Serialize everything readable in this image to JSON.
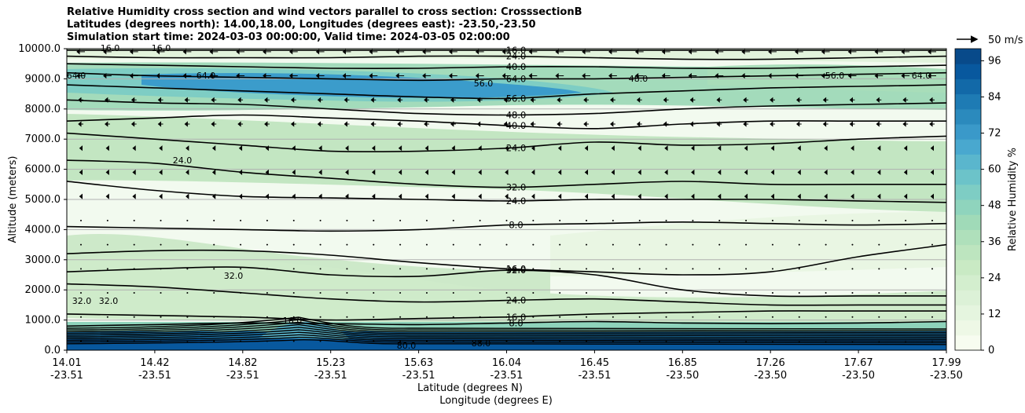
{
  "header": {
    "title_line1": "Relative Humidity cross section and wind vectors parallel to cross section: CrosssectionB",
    "title_line2": "Latitudes (degrees north): 14.00,18.00, Longitudes (degrees east): -23.50,-23.50",
    "title_line3": "Simulation start time: 2024-03-03 00:00:00, Valid time: 2024-03-05 02:00:00"
  },
  "chart_data": {
    "type": "contour cross-section",
    "ylabel": "Altitude (meters)",
    "xlabel_line1": "Latitude (degrees N)",
    "xlabel_line2": "Longitude (degrees E)",
    "ylim": [
      0,
      10000
    ],
    "y_ticks": [
      "0.0",
      "1000.0",
      "2000.0",
      "3000.0",
      "4000.0",
      "5000.0",
      "6000.0",
      "7000.0",
      "8000.0",
      "9000.0",
      "10000.0"
    ],
    "x_ticks": [
      {
        "lat": "14.01",
        "lon": "-23.51"
      },
      {
        "lat": "14.42",
        "lon": "-23.51"
      },
      {
        "lat": "14.82",
        "lon": "-23.51"
      },
      {
        "lat": "15.23",
        "lon": "-23.51"
      },
      {
        "lat": "15.63",
        "lon": "-23.51"
      },
      {
        "lat": "16.04",
        "lon": "-23.51"
      },
      {
        "lat": "16.45",
        "lon": "-23.51"
      },
      {
        "lat": "16.85",
        "lon": "-23.50"
      },
      {
        "lat": "17.26",
        "lon": "-23.50"
      },
      {
        "lat": "17.67",
        "lon": "-23.50"
      },
      {
        "lat": "17.99",
        "lon": "-23.50"
      }
    ],
    "colorbar": {
      "label": "Relative Humidity %",
      "ticks": [
        "0",
        "12",
        "24",
        "36",
        "48",
        "60",
        "72",
        "84",
        "96"
      ],
      "range": [
        0,
        100
      ],
      "colors": [
        "#f7fcf0",
        "#eef8e6",
        "#e5f5df",
        "#dcf1d7",
        "#d3eece",
        "#c9eac4",
        "#bde5bf",
        "#afe0bb",
        "#a0dab8",
        "#8fd4bd",
        "#7ecdc4",
        "#6cc3c9",
        "#5ab6cd",
        "#49a8cf",
        "#3a99c9",
        "#2b8abd",
        "#1e7bb4",
        "#1269a8",
        "#08589e",
        "#084a8a"
      ]
    },
    "wind_key": "50 m/s",
    "contour_labels": [
      "16.0",
      "24.0",
      "32.0",
      "40.0",
      "48.0",
      "56.0",
      "64.0",
      "8.0",
      "80.0",
      "88.0",
      "32.0",
      "24.0"
    ],
    "contours": [
      {
        "level": "8.0",
        "alt": [
          800,
          850,
          900,
          880,
          850,
          900,
          950,
          900,
          880,
          900,
          950
        ]
      },
      {
        "level": "16.0",
        "alt": [
          1200,
          1150,
          1100,
          1000,
          1050,
          1100,
          1200,
          1250,
          1300,
          1300,
          1300
        ]
      },
      {
        "level": "24.0",
        "alt": [
          2200,
          2100,
          1900,
          1700,
          1600,
          1650,
          1700,
          1600,
          1500,
          1500,
          1500
        ]
      },
      {
        "level": "32.0",
        "alt": [
          2600,
          2700,
          2750,
          2500,
          2450,
          2650,
          2500,
          2000,
          1800,
          1800,
          1800
        ]
      },
      {
        "level": "16.0",
        "alt": [
          3200,
          3300,
          3300,
          3150,
          2900,
          2700,
          2600,
          2500,
          2600,
          3100,
          3500
        ]
      },
      {
        "level": "8.0",
        "alt": [
          4100,
          4050,
          4000,
          3950,
          4000,
          4150,
          4200,
          4250,
          4200,
          4150,
          4200
        ]
      },
      {
        "level": "24.0",
        "alt": [
          5600,
          5300,
          5100,
          5050,
          5000,
          4950,
          5000,
          5000,
          5000,
          4950,
          4900
        ]
      },
      {
        "level": "32.0",
        "alt": [
          6300,
          6200,
          5900,
          5700,
          5500,
          5400,
          5500,
          5600,
          5500,
          5500,
          5500
        ]
      },
      {
        "level": "24.0",
        "alt": [
          7200,
          7000,
          6800,
          6600,
          6600,
          6700,
          6900,
          6800,
          6850,
          7000,
          7100
        ]
      },
      {
        "level": "40.0",
        "alt": [
          7600,
          7700,
          7800,
          7700,
          7600,
          7450,
          7350,
          7500,
          7600,
          7600,
          7600
        ]
      },
      {
        "level": "48.0",
        "alt": [
          8300,
          8200,
          8150,
          8000,
          7850,
          7800,
          7850,
          8000,
          8100,
          8150,
          8200
        ]
      },
      {
        "level": "56.0",
        "alt": [
          8800,
          8700,
          8600,
          8500,
          8400,
          8350,
          8500,
          8600,
          8700,
          8750,
          8800
        ]
      },
      {
        "level": "64.0",
        "alt": [
          9200,
          9100,
          9050,
          9000,
          8950,
          9000,
          9000,
          9050,
          9100,
          9150,
          9200
        ]
      },
      {
        "level": "40.0",
        "alt": [
          9500,
          9450,
          9400,
          9350,
          9350,
          9400,
          9400,
          9350,
          9350,
          9400,
          9450
        ]
      },
      {
        "level": "24.0",
        "alt": [
          9750,
          9700,
          9700,
          9700,
          9750,
          9750,
          9700,
          9650,
          9650,
          9700,
          9750
        ]
      },
      {
        "level": "16.0",
        "alt": [
          9950,
          9950,
          9950,
          9950,
          9950,
          9950,
          9950,
          9950,
          9950,
          9950,
          9950
        ]
      }
    ]
  }
}
